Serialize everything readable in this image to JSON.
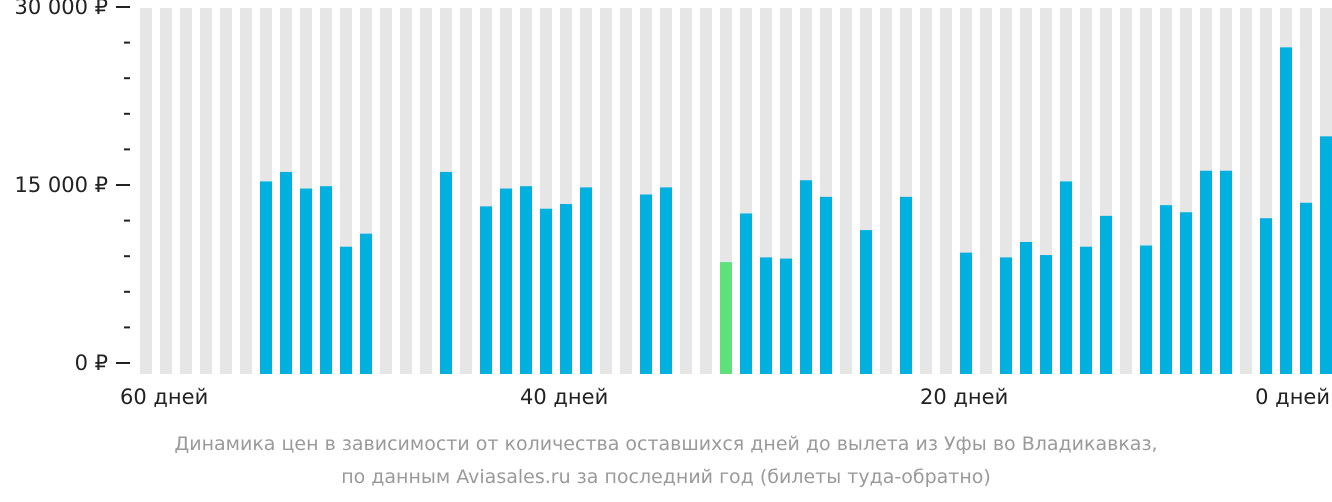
{
  "colors": {
    "background_bar": "#e6e6e6",
    "bar": "#00b0df",
    "min_bar": "#5ee07a",
    "axis": "#222222",
    "caption": "#9a9a9a"
  },
  "chart_data": {
    "type": "bar",
    "y_ticks": [
      {
        "value": 0,
        "label": "0 ₽"
      },
      {
        "value": 15000,
        "label": "15 000 ₽"
      },
      {
        "value": 30000,
        "label": "30 000 ₽"
      }
    ],
    "ylim": [
      0,
      30000
    ],
    "x_ticks": [
      {
        "day": 60,
        "label": "60 дней"
      },
      {
        "day": 40,
        "label": "40 дней"
      },
      {
        "day": 20,
        "label": "20 дней"
      },
      {
        "day": 0,
        "label": "0 дней"
      }
    ],
    "days_to_departure": [
      59,
      58,
      57,
      56,
      55,
      54,
      53,
      52,
      51,
      50,
      49,
      48,
      47,
      46,
      45,
      44,
      43,
      42,
      41,
      40,
      39,
      38,
      37,
      36,
      35,
      34,
      33,
      32,
      31,
      30,
      29,
      28,
      27,
      26,
      25,
      24,
      23,
      22,
      21,
      20,
      19,
      18,
      17,
      16,
      15,
      14,
      13,
      12,
      11,
      10,
      9,
      8,
      7,
      6,
      5,
      4,
      3,
      2,
      1,
      0
    ],
    "values": [
      null,
      null,
      null,
      null,
      null,
      null,
      15300,
      16100,
      14700,
      14900,
      9800,
      10900,
      null,
      null,
      null,
      16100,
      null,
      13200,
      14700,
      14900,
      13000,
      13400,
      14800,
      null,
      null,
      14200,
      14800,
      null,
      null,
      8500,
      12600,
      8900,
      8800,
      15400,
      14000,
      null,
      11200,
      null,
      14000,
      null,
      null,
      9300,
      null,
      8900,
      10200,
      9100,
      15300,
      9800,
      12400,
      null,
      9900,
      13300,
      12700,
      16200,
      16200,
      null,
      12200,
      26600,
      13500,
      19100
    ],
    "min_index": 29,
    "caption_lines": [
      "Динамика цен в зависимости от количества оставшихся дней до вылета из Уфы во Владикавказ,",
      "по данным Aviasales.ru за последний год (билеты туда-обратно)"
    ]
  }
}
